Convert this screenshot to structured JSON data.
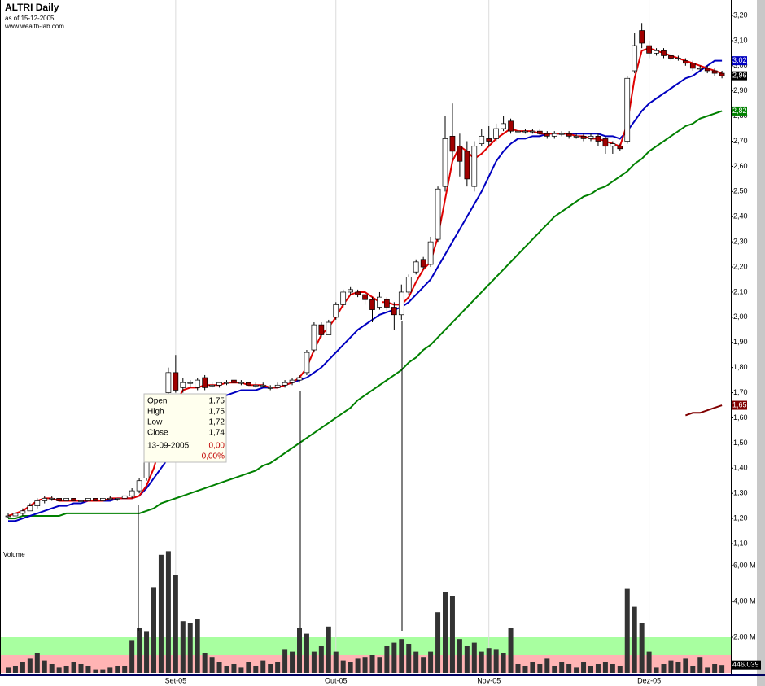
{
  "chart_data": {
    "type": "candlestick",
    "title": "ALTRI Daily",
    "subtitle": "as of 15-12-2005",
    "source": "www.wealth-lab.com",
    "up_color": "#ffffff",
    "down_color": "#a00000",
    "ylim": [
      1.1,
      3.2
    ],
    "yticks": [
      {
        "value": 1.1,
        "label": "1,10"
      },
      {
        "value": 1.2,
        "label": "1,20"
      },
      {
        "value": 1.3,
        "label": "1,30"
      },
      {
        "value": 1.4,
        "label": "1,40"
      },
      {
        "value": 1.5,
        "label": "1,50"
      },
      {
        "value": 1.6,
        "label": "1,60"
      },
      {
        "value": 1.7,
        "label": "1,70"
      },
      {
        "value": 1.8,
        "label": "1,80"
      },
      {
        "value": 1.9,
        "label": "1,90"
      },
      {
        "value": 2.0,
        "label": "2,00"
      },
      {
        "value": 2.1,
        "label": "2,10"
      },
      {
        "value": 2.2,
        "label": "2,20"
      },
      {
        "value": 2.3,
        "label": "2,30"
      },
      {
        "value": 2.4,
        "label": "2,40"
      },
      {
        "value": 2.5,
        "label": "2,50"
      },
      {
        "value": 2.6,
        "label": "2,60"
      },
      {
        "value": 2.7,
        "label": "2,70"
      },
      {
        "value": 2.8,
        "label": "2,80"
      },
      {
        "value": 2.9,
        "label": "2,90"
      },
      {
        "value": 3.0,
        "label": "3,00"
      },
      {
        "value": 3.1,
        "label": "3,10"
      },
      {
        "value": 3.2,
        "label": "3,20"
      }
    ],
    "xticks": [
      {
        "value": 23,
        "label": "Set-05"
      },
      {
        "value": 45,
        "label": "Out-05"
      },
      {
        "value": 66,
        "label": "Nov-05"
      },
      {
        "value": 88,
        "label": "Dez-05"
      }
    ],
    "grid": true,
    "candles": [
      [
        1.21,
        1.22,
        1.2,
        1.21
      ],
      [
        1.21,
        1.22,
        1.21,
        1.22
      ],
      [
        1.22,
        1.24,
        1.21,
        1.23
      ],
      [
        1.23,
        1.26,
        1.23,
        1.25
      ],
      [
        1.25,
        1.28,
        1.24,
        1.27
      ],
      [
        1.27,
        1.29,
        1.26,
        1.28
      ],
      [
        1.28,
        1.29,
        1.27,
        1.28
      ],
      [
        1.28,
        1.28,
        1.27,
        1.27
      ],
      [
        1.27,
        1.28,
        1.27,
        1.28
      ],
      [
        1.28,
        1.28,
        1.27,
        1.27
      ],
      [
        1.27,
        1.28,
        1.27,
        1.27
      ],
      [
        1.27,
        1.28,
        1.27,
        1.28
      ],
      [
        1.28,
        1.28,
        1.27,
        1.27
      ],
      [
        1.27,
        1.28,
        1.27,
        1.28
      ],
      [
        1.28,
        1.29,
        1.28,
        1.28
      ],
      [
        1.28,
        1.28,
        1.27,
        1.28
      ],
      [
        1.28,
        1.29,
        1.28,
        1.29
      ],
      [
        1.29,
        1.32,
        1.28,
        1.31
      ],
      [
        1.31,
        1.36,
        1.3,
        1.35
      ],
      [
        1.36,
        1.44,
        1.35,
        1.43
      ],
      [
        1.44,
        1.55,
        1.43,
        1.54
      ],
      [
        1.55,
        1.68,
        1.54,
        1.67
      ],
      [
        1.7,
        1.8,
        1.69,
        1.78
      ],
      [
        1.78,
        1.85,
        1.7,
        1.71
      ],
      [
        1.72,
        1.76,
        1.7,
        1.74
      ],
      [
        1.74,
        1.75,
        1.72,
        1.74
      ],
      [
        1.72,
        1.76,
        1.71,
        1.75
      ],
      [
        1.76,
        1.77,
        1.71,
        1.72
      ],
      [
        1.73,
        1.74,
        1.72,
        1.73
      ],
      [
        1.73,
        1.74,
        1.72,
        1.74
      ],
      [
        1.74,
        1.75,
        1.73,
        1.74
      ],
      [
        1.75,
        1.75,
        1.74,
        1.74
      ],
      [
        1.74,
        1.75,
        1.73,
        1.74
      ],
      [
        1.74,
        1.74,
        1.73,
        1.73
      ],
      [
        1.73,
        1.74,
        1.72,
        1.73
      ],
      [
        1.73,
        1.74,
        1.72,
        1.73
      ],
      [
        1.72,
        1.73,
        1.71,
        1.72
      ],
      [
        1.72,
        1.74,
        1.72,
        1.73
      ],
      [
        1.73,
        1.75,
        1.72,
        1.74
      ],
      [
        1.74,
        1.76,
        1.73,
        1.75
      ],
      [
        1.75,
        1.77,
        1.74,
        1.76
      ],
      [
        1.78,
        1.87,
        1.77,
        1.86
      ],
      [
        1.87,
        1.98,
        1.86,
        1.97
      ],
      [
        1.97,
        1.98,
        1.92,
        1.93
      ],
      [
        1.93,
        1.99,
        1.93,
        1.98
      ],
      [
        2.0,
        2.06,
        1.99,
        2.05
      ],
      [
        2.05,
        2.11,
        2.04,
        2.1
      ],
      [
        2.1,
        2.12,
        2.09,
        2.11
      ],
      [
        2.1,
        2.11,
        2.08,
        2.09
      ],
      [
        2.09,
        2.1,
        2.05,
        2.07
      ],
      [
        2.07,
        2.08,
        1.98,
        2.03
      ],
      [
        2.04,
        2.1,
        2.03,
        2.08
      ],
      [
        2.07,
        2.08,
        2.02,
        2.04
      ],
      [
        2.04,
        2.06,
        1.95,
        2.01
      ],
      [
        2.01,
        2.13,
        1.99,
        2.1
      ],
      [
        2.1,
        2.17,
        2.09,
        2.16
      ],
      [
        2.18,
        2.23,
        2.17,
        2.22
      ],
      [
        2.23,
        2.24,
        2.19,
        2.2
      ],
      [
        2.21,
        2.32,
        2.2,
        2.3
      ],
      [
        2.31,
        2.52,
        2.3,
        2.51
      ],
      [
        2.52,
        2.8,
        2.5,
        2.71
      ],
      [
        2.72,
        2.85,
        2.63,
        2.66
      ],
      [
        2.68,
        2.73,
        2.56,
        2.62
      ],
      [
        2.66,
        2.7,
        2.52,
        2.55
      ],
      [
        2.52,
        2.7,
        2.5,
        2.68
      ],
      [
        2.69,
        2.75,
        2.68,
        2.72
      ],
      [
        2.71,
        2.76,
        2.68,
        2.7
      ],
      [
        2.71,
        2.77,
        2.7,
        2.75
      ],
      [
        2.75,
        2.8,
        2.74,
        2.77
      ],
      [
        2.78,
        2.79,
        2.73,
        2.74
      ],
      [
        2.74,
        2.75,
        2.73,
        2.74
      ],
      [
        2.74,
        2.75,
        2.73,
        2.74
      ],
      [
        2.74,
        2.75,
        2.73,
        2.74
      ],
      [
        2.74,
        2.75,
        2.72,
        2.73
      ],
      [
        2.73,
        2.74,
        2.71,
        2.72
      ],
      [
        2.72,
        2.74,
        2.71,
        2.73
      ],
      [
        2.73,
        2.74,
        2.72,
        2.73
      ],
      [
        2.73,
        2.74,
        2.71,
        2.72
      ],
      [
        2.72,
        2.73,
        2.71,
        2.72
      ],
      [
        2.72,
        2.73,
        2.7,
        2.71
      ],
      [
        2.71,
        2.73,
        2.7,
        2.72
      ],
      [
        2.72,
        2.73,
        2.68,
        2.7
      ],
      [
        2.71,
        2.72,
        2.65,
        2.68
      ],
      [
        2.68,
        2.7,
        2.65,
        2.69
      ],
      [
        2.68,
        2.69,
        2.66,
        2.67
      ],
      [
        2.7,
        2.96,
        2.69,
        2.95
      ],
      [
        2.98,
        3.13,
        2.97,
        3.08
      ],
      [
        3.14,
        3.17,
        3.07,
        3.09
      ],
      [
        3.08,
        3.1,
        3.03,
        3.05
      ],
      [
        3.05,
        3.07,
        3.04,
        3.06
      ],
      [
        3.06,
        3.07,
        3.03,
        3.04
      ],
      [
        3.04,
        3.05,
        3.02,
        3.03
      ],
      [
        3.03,
        3.04,
        3.02,
        3.03
      ],
      [
        3.02,
        3.03,
        3.0,
        3.01
      ],
      [
        3.01,
        3.02,
        2.98,
        2.99
      ],
      [
        2.99,
        3.0,
        2.98,
        2.99
      ],
      [
        2.99,
        3.0,
        2.97,
        2.98
      ],
      [
        2.98,
        2.99,
        2.96,
        2.97
      ],
      [
        2.97,
        2.98,
        2.95,
        2.96
      ]
    ],
    "close_label": "2,96",
    "series": [
      {
        "color": "#008000",
        "last_label": "2,82",
        "values": [
          1.2,
          1.2,
          1.21,
          1.21,
          1.21,
          1.21,
          1.21,
          1.21,
          1.22,
          1.22,
          1.22,
          1.22,
          1.22,
          1.22,
          1.22,
          1.22,
          1.22,
          1.22,
          1.22,
          1.23,
          1.24,
          1.26,
          1.27,
          1.28,
          1.29,
          1.3,
          1.31,
          1.32,
          1.33,
          1.34,
          1.35,
          1.36,
          1.37,
          1.38,
          1.39,
          1.41,
          1.42,
          1.44,
          1.46,
          1.48,
          1.5,
          1.52,
          1.54,
          1.56,
          1.58,
          1.6,
          1.62,
          1.64,
          1.67,
          1.69,
          1.71,
          1.73,
          1.75,
          1.77,
          1.79,
          1.82,
          1.84,
          1.87,
          1.89,
          1.92,
          1.95,
          1.98,
          2.01,
          2.04,
          2.07,
          2.1,
          2.13,
          2.16,
          2.19,
          2.22,
          2.25,
          2.28,
          2.31,
          2.34,
          2.37,
          2.4,
          2.42,
          2.44,
          2.46,
          2.48,
          2.49,
          2.51,
          2.52,
          2.54,
          2.56,
          2.58,
          2.61,
          2.63,
          2.66,
          2.68,
          2.7,
          2.72,
          2.74,
          2.76,
          2.77,
          2.79,
          2.8,
          2.81,
          2.82
        ]
      },
      {
        "color": "#0000c0",
        "last_label": "3,02",
        "values": [
          1.19,
          1.19,
          1.2,
          1.21,
          1.22,
          1.23,
          1.24,
          1.25,
          1.25,
          1.26,
          1.26,
          1.27,
          1.27,
          1.27,
          1.27,
          1.28,
          1.28,
          1.28,
          1.29,
          1.32,
          1.36,
          1.4,
          1.44,
          1.47,
          1.5,
          1.53,
          1.57,
          1.61,
          1.64,
          1.67,
          1.69,
          1.7,
          1.71,
          1.71,
          1.71,
          1.72,
          1.72,
          1.72,
          1.73,
          1.74,
          1.75,
          1.76,
          1.78,
          1.8,
          1.83,
          1.86,
          1.89,
          1.92,
          1.95,
          1.97,
          1.99,
          2.01,
          2.02,
          2.03,
          2.04,
          2.06,
          2.09,
          2.12,
          2.15,
          2.2,
          2.25,
          2.3,
          2.35,
          2.4,
          2.45,
          2.5,
          2.56,
          2.62,
          2.66,
          2.69,
          2.71,
          2.71,
          2.72,
          2.72,
          2.73,
          2.73,
          2.73,
          2.73,
          2.73,
          2.73,
          2.73,
          2.73,
          2.72,
          2.72,
          2.71,
          2.74,
          2.78,
          2.82,
          2.85,
          2.87,
          2.89,
          2.91,
          2.93,
          2.95,
          2.96,
          2.98,
          3.0,
          3.02,
          3.02
        ]
      },
      {
        "color": "#e00000",
        "values": [
          1.21,
          1.22,
          1.23,
          1.25,
          1.27,
          1.28,
          1.28,
          1.27,
          1.27,
          1.27,
          1.27,
          1.27,
          1.27,
          1.27,
          1.28,
          1.28,
          1.28,
          1.28,
          1.29,
          1.33,
          1.4,
          1.5,
          1.58,
          1.66,
          1.71,
          1.72,
          1.72,
          1.73,
          1.73,
          1.73,
          1.74,
          1.74,
          1.74,
          1.73,
          1.73,
          1.73,
          1.72,
          1.72,
          1.73,
          1.74,
          1.76,
          1.8,
          1.87,
          1.93,
          1.96,
          2.0,
          2.05,
          2.09,
          2.1,
          2.1,
          2.08,
          2.06,
          2.06,
          2.05,
          2.05,
          2.08,
          2.14,
          2.19,
          2.22,
          2.32,
          2.47,
          2.62,
          2.68,
          2.66,
          2.63,
          2.65,
          2.68,
          2.71,
          2.73,
          2.75,
          2.74,
          2.74,
          2.74,
          2.73,
          2.73,
          2.73,
          2.73,
          2.73,
          2.72,
          2.72,
          2.71,
          2.71,
          2.7,
          2.69,
          2.68,
          2.77,
          2.95,
          3.06,
          3.07,
          3.06,
          3.05,
          3.04,
          3.03,
          3.02,
          3.01,
          3.0,
          2.99,
          2.98,
          2.97
        ]
      },
      {
        "color": "#800000",
        "last_label": "1,65",
        "values": [
          null,
          null,
          null,
          null,
          null,
          null,
          null,
          null,
          null,
          null,
          null,
          null,
          null,
          null,
          null,
          null,
          null,
          null,
          null,
          null,
          null,
          null,
          null,
          null,
          null,
          null,
          null,
          null,
          null,
          null,
          null,
          null,
          null,
          null,
          null,
          null,
          null,
          null,
          null,
          null,
          null,
          null,
          null,
          null,
          null,
          null,
          null,
          null,
          null,
          null,
          null,
          null,
          null,
          null,
          null,
          null,
          null,
          null,
          null,
          null,
          null,
          null,
          null,
          null,
          null,
          null,
          null,
          null,
          null,
          null,
          null,
          null,
          null,
          null,
          null,
          null,
          null,
          null,
          null,
          null,
          null,
          null,
          null,
          null,
          null,
          null,
          null,
          null,
          null,
          null,
          null,
          null,
          null,
          1.61,
          1.62,
          1.62,
          1.63,
          1.64,
          1.65
        ]
      }
    ],
    "volume": {
      "label": "Volume",
      "color": "#333333",
      "ylim": [
        0,
        6.9
      ],
      "yticks": [
        {
          "value": 2,
          "label": "2,00 M"
        },
        {
          "value": 4,
          "label": "4,00 M"
        },
        {
          "value": 6,
          "label": "6,00 M"
        }
      ],
      "bands": [
        {
          "from": 0,
          "to": 1,
          "color": "#ffb4b4"
        },
        {
          "from": 1,
          "to": 2,
          "color": "#a8ffa0"
        }
      ],
      "last_label": "446.039",
      "values": [
        0.3,
        0.4,
        0.6,
        0.8,
        1.1,
        0.7,
        0.5,
        0.3,
        0.4,
        0.6,
        0.5,
        0.4,
        0.2,
        0.2,
        0.3,
        0.4,
        0.4,
        1.8,
        2.5,
        2.3,
        4.8,
        6.6,
        6.8,
        5.5,
        2.9,
        2.8,
        3.0,
        1.1,
        0.9,
        0.6,
        0.4,
        0.5,
        0.3,
        0.6,
        0.4,
        0.7,
        0.5,
        0.6,
        1.3,
        1.2,
        2.5,
        2.2,
        1.2,
        1.5,
        2.6,
        1.2,
        0.7,
        0.6,
        0.8,
        0.9,
        1.0,
        0.9,
        1.5,
        1.7,
        1.9,
        1.6,
        1.2,
        0.9,
        1.2,
        3.4,
        4.5,
        4.3,
        1.9,
        1.5,
        1.7,
        1.2,
        1.4,
        1.3,
        1.1,
        2.5,
        0.5,
        0.4,
        0.6,
        0.5,
        0.8,
        0.4,
        0.6,
        0.5,
        0.3,
        0.6,
        0.4,
        0.5,
        0.6,
        0.5,
        0.4,
        4.7,
        3.7,
        2.8,
        1.2,
        0.3,
        0.5,
        0.7,
        0.6,
        0.8,
        0.4,
        0.9,
        0.3,
        0.5,
        0.446039
      ]
    },
    "tooltip": {
      "rows": [
        [
          "Open",
          "1,75"
        ],
        [
          "High",
          "1,75"
        ],
        [
          "Low",
          "1,72"
        ],
        [
          "Close",
          "1,74"
        ]
      ],
      "date": "13-09-2005",
      "change": "0,00",
      "change_pct": "0,00%"
    }
  }
}
